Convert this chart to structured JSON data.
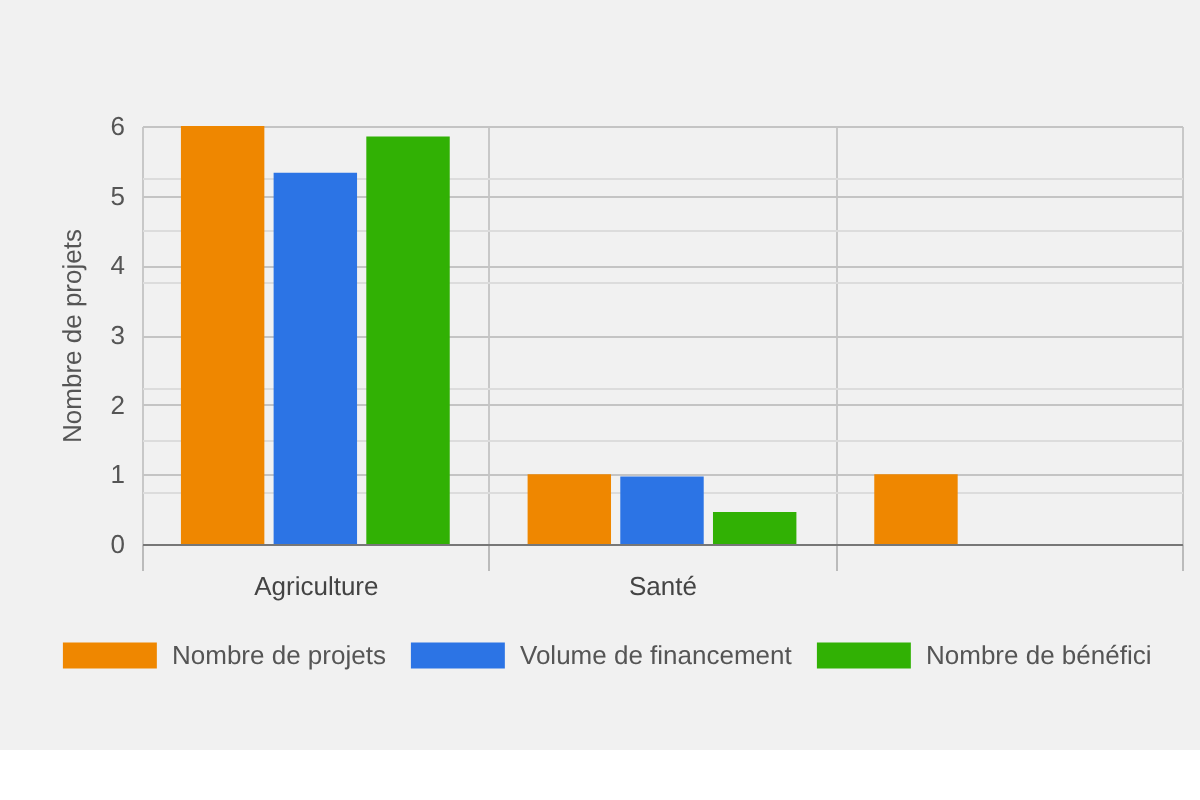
{
  "chart_data": {
    "type": "bar",
    "ylabel": "Nombre de projets",
    "categories": [
      "Agriculture",
      "Santé",
      null
    ],
    "series": [
      {
        "name": "Nombre de projets",
        "color": "#ef8700",
        "values": [
          6,
          1,
          1
        ]
      },
      {
        "name": "Volume de financement",
        "color": "#2c74e5",
        "values": [
          5.33,
          0.97,
          null
        ]
      },
      {
        "name": "Nombre de bénéfici",
        "color": "#31b104",
        "values": [
          5.85,
          0.46,
          null
        ]
      }
    ],
    "ylim": [
      0,
      6
    ],
    "yticks": [
      0,
      {
        "value": 0.75,
        "label": null
      },
      1,
      {
        "value": 1.5,
        "label": null
      },
      2,
      {
        "value": 2.25,
        "label": null
      },
      3,
      {
        "value": 3.75,
        "label": null
      },
      4,
      {
        "value": 4.5,
        "label": null
      },
      5,
      {
        "value": 5.25,
        "label": null
      },
      6
    ],
    "grid": true,
    "legend": "bottom"
  }
}
